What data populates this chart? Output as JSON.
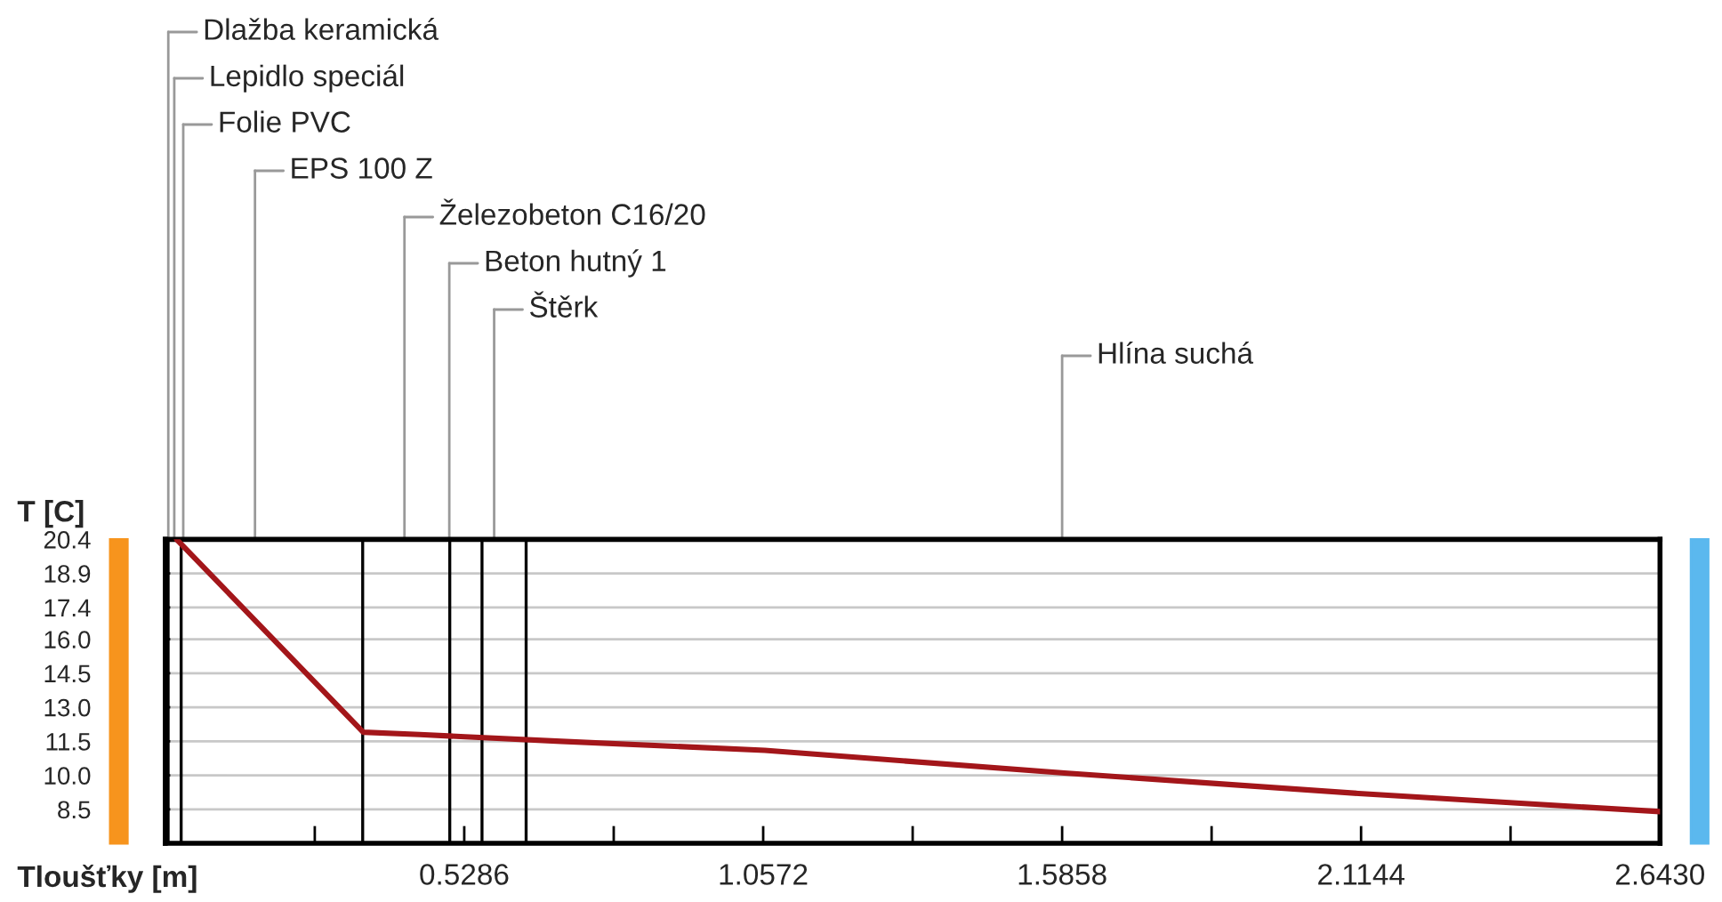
{
  "chart_data": {
    "type": "line",
    "ylabel": "T [C]",
    "xlabel": "Tloušťky [m]",
    "series": [
      {
        "color": "#a3161a",
        "x": [
          0.02,
          0.35,
          0.45,
          0.53,
          0.7,
          1.06,
          1.59,
          2.11,
          2.643
        ],
        "values": [
          20.4,
          11.9,
          11.8,
          11.7,
          11.5,
          11.1,
          10.1,
          9.2,
          8.4
        ]
      }
    ],
    "xlim": [
      0,
      2.643
    ],
    "ylim": [
      7.0,
      20.4
    ],
    "xticks": [
      {
        "value": 0.2643,
        "label": null
      },
      0.5286,
      {
        "value": 0.7929,
        "label": null
      },
      1.0572,
      {
        "value": 1.3215,
        "label": null
      },
      1.5858,
      {
        "value": 1.8501,
        "label": null
      },
      2.1144,
      {
        "value": 2.3787,
        "label": null
      },
      {
        "value": 2.643,
        "label": "2.6430"
      }
    ],
    "yticks": [
      8.5,
      {
        "value": 10.0,
        "label": "10.0"
      },
      11.5,
      {
        "value": 13.0,
        "label": "13.0"
      },
      14.5,
      {
        "value": 16.0,
        "label": "16.0"
      },
      17.4,
      18.9,
      20.4
    ],
    "grid": "y",
    "marker": "none",
    "line_style": "solid",
    "ref_lines": [
      {
        "axis": "x",
        "value": 0.005,
        "color": "#000000"
      },
      {
        "axis": "x",
        "value": 0.028,
        "color": "#000000"
      },
      {
        "axis": "x",
        "value": 0.349,
        "color": "#000000"
      },
      {
        "axis": "x",
        "value": 0.503,
        "color": "#000000"
      },
      {
        "axis": "x",
        "value": 0.56,
        "color": "#000000"
      },
      {
        "axis": "x",
        "value": 0.638,
        "color": "#000000"
      }
    ],
    "annotations": [
      "Dlažba keramická",
      "Lepidlo speciál",
      "Folie PVC",
      "EPS 100 Z",
      "Železobeton C16/20",
      "Beton hutný 1",
      "Štěrk",
      "Hlína suchá"
    ]
  }
}
